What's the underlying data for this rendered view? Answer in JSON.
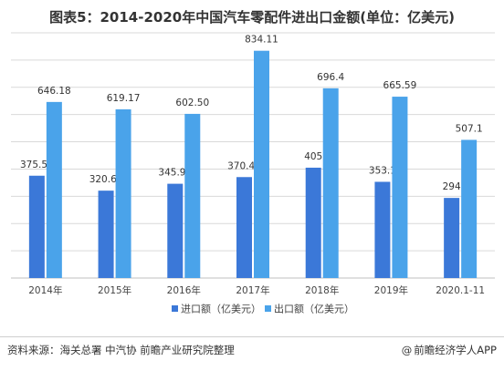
{
  "title": "图表5：2014-2020年中国汽车零配件进出口金额(单位：亿美元)",
  "source": "资料来源：海关总署 中汽协 前瞻产业研究院整理",
  "brand": "前瞻经济学人APP",
  "brand_icon": "at-icon",
  "colors": {
    "import": "#3b78d8",
    "export": "#4aa3ea",
    "grid": "#d9d9d9",
    "axis": "#bfbfbf"
  },
  "chart_data": {
    "type": "bar",
    "categories": [
      "2014年",
      "2015年",
      "2016年",
      "2017年",
      "2018年",
      "2019年",
      "2020.1-11"
    ],
    "series": [
      {
        "name": "进口额（亿美元）",
        "values": [
          375.51,
          320.65,
          345.96,
          370.48,
          405,
          353.1,
          294
        ],
        "labels": [
          "375.51",
          "320.65",
          "345.96",
          "370.48",
          "405",
          "353.1",
          "294"
        ]
      },
      {
        "name": "出口额（亿美元）",
        "values": [
          646.18,
          619.17,
          602.5,
          834.11,
          696.4,
          665.59,
          507.1
        ],
        "labels": [
          "646.18",
          "619.17",
          "602.50",
          "834.11",
          "696.4",
          "665.59",
          "507.1"
        ]
      }
    ],
    "ylim": [
      0,
      900
    ],
    "y_axis_visible": false,
    "grid": true,
    "legend_position": "bottom"
  }
}
